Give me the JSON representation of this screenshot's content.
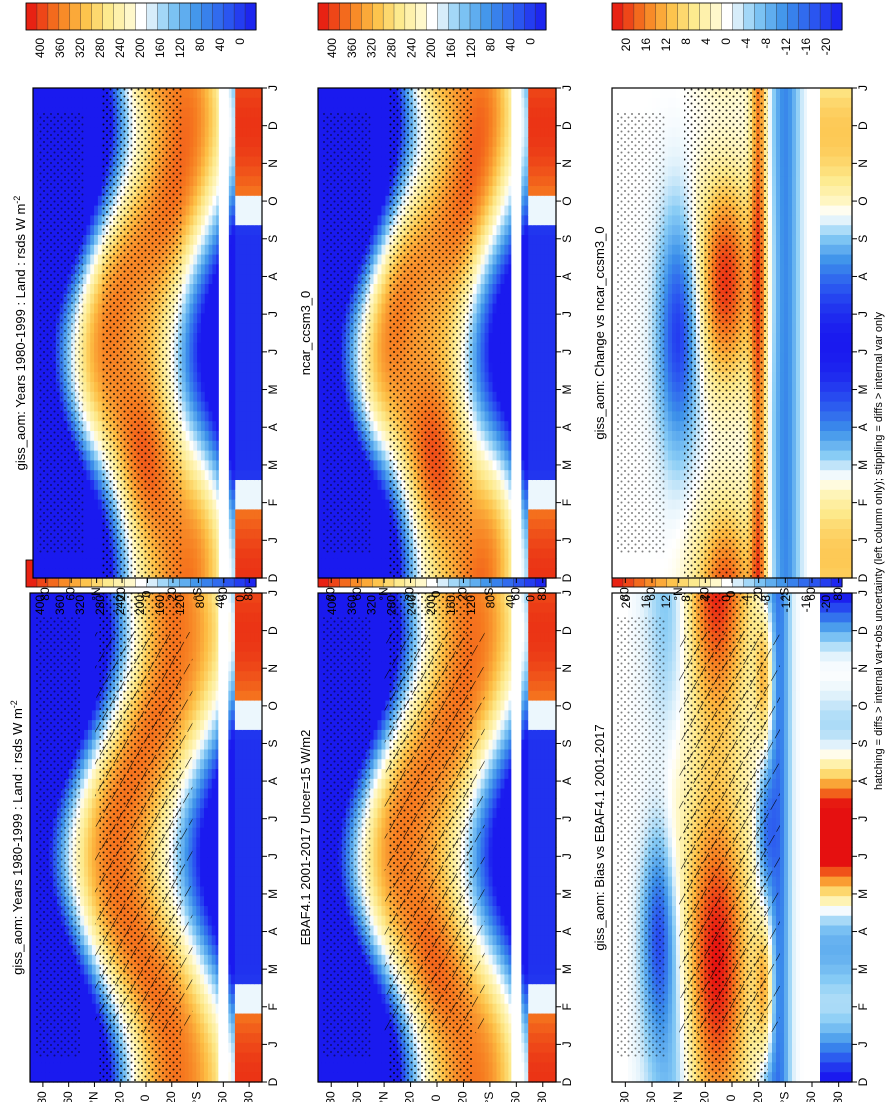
{
  "figure": {
    "footnote": "hatching = diffs > internal var+obs uncertainty (left column only); stippling = diffs > internal var only"
  },
  "chart_data": [
    {
      "type": "heatmap",
      "id": "p1",
      "title": "giss_aom: Years 1980-1999 : Land : rsds W m",
      "title_sup": "-2",
      "xlabel": "",
      "ylabel": "",
      "months": [
        "D",
        "J",
        "F",
        "M",
        "A",
        "M",
        "J",
        "J",
        "A",
        "S",
        "O",
        "N",
        "D",
        "J"
      ],
      "lat_ticks": [
        "80",
        "60",
        "°N",
        "20",
        "0",
        "20",
        "°S",
        "60",
        "80"
      ],
      "ylim": [
        -90,
        90
      ],
      "colorbar": {
        "ticks": [
          "400",
          "360",
          "320",
          "280",
          "240",
          "200",
          "160",
          "120",
          "80",
          "40",
          "0"
        ],
        "vmin": 0,
        "vmax": 420
      },
      "hatching": true,
      "stippling": true,
      "gap_lat": -60
    },
    {
      "type": "heatmap",
      "id": "p2",
      "title": "giss_aom: Years 1980-1999 : Land : rsds W m",
      "title_sup": "-2",
      "months": [
        "D",
        "J",
        "F",
        "M",
        "A",
        "M",
        "J",
        "J",
        "A",
        "S",
        "O",
        "N",
        "D",
        "J"
      ],
      "lat_ticks": [
        "80",
        "60",
        "°N",
        "20",
        "0",
        "20",
        "°S",
        "60",
        "80"
      ],
      "ylim": [
        -90,
        90
      ],
      "colorbar": {
        "ticks": [
          "400",
          "360",
          "320",
          "280",
          "240",
          "200",
          "160",
          "120",
          "80",
          "40",
          "0"
        ],
        "vmin": 0,
        "vmax": 420
      },
      "hatching": false,
      "stippling": true,
      "gap_lat": -60
    },
    {
      "type": "heatmap",
      "id": "p3",
      "title": "EBAF4.1 2001-2017 Uncer=15 W/m2",
      "title_sup": "",
      "months": [
        "D",
        "J",
        "F",
        "M",
        "A",
        "M",
        "J",
        "J",
        "A",
        "S",
        "O",
        "N",
        "D",
        "J"
      ],
      "lat_ticks": [
        "80",
        "60",
        "°N",
        "20",
        "0",
        "20",
        "°S",
        "60",
        "80"
      ],
      "ylim": [
        -90,
        90
      ],
      "colorbar": {
        "ticks": [
          "400",
          "360",
          "320",
          "280",
          "240",
          "200",
          "160",
          "120",
          "80",
          "40",
          "0"
        ],
        "vmin": 0,
        "vmax": 420
      },
      "hatching": true,
      "stippling": true,
      "gap_lat": -60
    },
    {
      "type": "heatmap",
      "id": "p4",
      "title": "ncar_ccsm3_0",
      "title_sup": "",
      "months": [
        "D",
        "J",
        "F",
        "M",
        "A",
        "M",
        "J",
        "J",
        "A",
        "S",
        "O",
        "N",
        "D",
        "J"
      ],
      "lat_ticks": [
        "80",
        "60",
        "°N",
        "20",
        "0",
        "20",
        "°S",
        "60",
        "80"
      ],
      "ylim": [
        -90,
        90
      ],
      "colorbar": {
        "ticks": [
          "400",
          "360",
          "320",
          "280",
          "240",
          "200",
          "160",
          "120",
          "80",
          "40",
          "0"
        ],
        "vmin": 0,
        "vmax": 420
      },
      "hatching": false,
      "stippling": true,
      "gap_lat": -60
    },
    {
      "type": "heatmap",
      "id": "p5",
      "title": "giss_aom: Bias vs EBAF4.1 2001-2017",
      "title_sup": "",
      "months": [
        "D",
        "J",
        "F",
        "M",
        "A",
        "M",
        "J",
        "J",
        "A",
        "S",
        "O",
        "N",
        "D",
        "J"
      ],
      "lat_ticks": [
        "80",
        "60",
        "°N",
        "20",
        "0",
        "20",
        "°S",
        "60",
        "80"
      ],
      "ylim": [
        -90,
        90
      ],
      "colorbar": {
        "ticks": [
          "20",
          "16",
          "12",
          "8",
          "4",
          "0",
          "-4",
          "-8",
          "-12",
          "-16",
          "-20"
        ],
        "vmin": -22,
        "vmax": 22
      },
      "hatching": true,
      "stippling": true,
      "gap_lat": -60
    },
    {
      "type": "heatmap",
      "id": "p6",
      "title": "giss_aom: Change vs ncar_ccsm3_0",
      "title_sup": "",
      "months": [
        "D",
        "J",
        "F",
        "M",
        "A",
        "M",
        "J",
        "J",
        "A",
        "S",
        "O",
        "N",
        "D",
        "J"
      ],
      "lat_ticks": [
        "80",
        "60",
        "°N",
        "20",
        "0",
        "20",
        "°S",
        "60",
        "80"
      ],
      "ylim": [
        -90,
        90
      ],
      "colorbar": {
        "ticks": [
          "20",
          "16",
          "12",
          "8",
          "4",
          "0",
          "-4",
          "-8",
          "-12",
          "-16",
          "-20"
        ],
        "vmin": -22,
        "vmax": 22
      },
      "hatching": false,
      "stippling": true,
      "gap_lat": -60
    }
  ]
}
